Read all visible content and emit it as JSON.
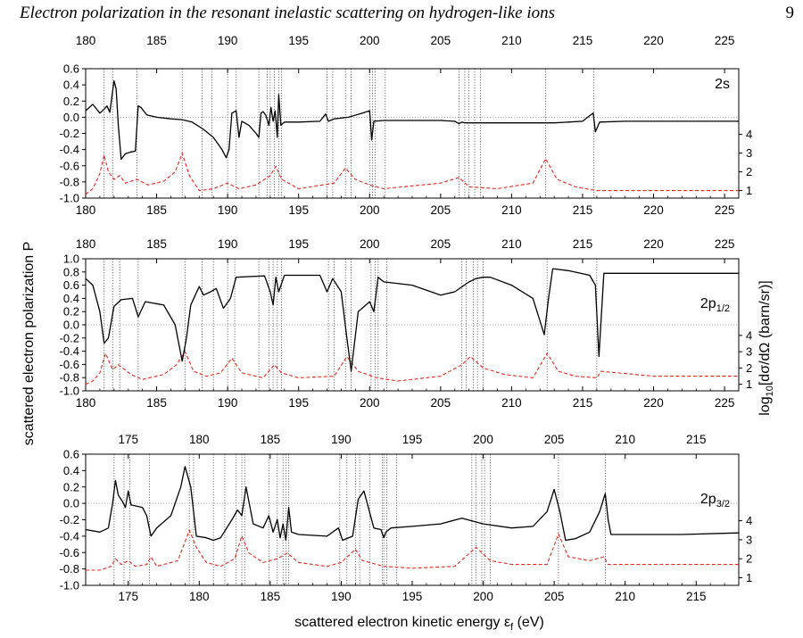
{
  "header": {
    "running_title": "Electron polarization in the resonant inelastic scattering on hydrogen-like ions",
    "page_number": "9"
  },
  "figure": {
    "ylabel_left": "scattered electron polarization P",
    "ylabel_right_parts": [
      "log",
      "10",
      "[dσ/dΩ (barn/sr)]"
    ],
    "xlabel_parts": [
      "scattered electron kinetic energy   ε",
      "f",
      " (eV)"
    ]
  },
  "chart_data": [
    {
      "type": "line",
      "panel_label": "2s",
      "panel_label_parts": [
        "2s",
        ""
      ],
      "xlim": [
        180,
        226
      ],
      "ylim": [
        -1.0,
        0.6
      ],
      "x_ticks": [
        180,
        185,
        190,
        195,
        200,
        205,
        210,
        215,
        220,
        225
      ],
      "y_ticks": [
        0.6,
        0.4,
        0.2,
        0.0,
        -0.2,
        -0.4,
        -0.6,
        -0.8,
        -1.0
      ],
      "y_tick_labels": [
        "0.6",
        "0.4",
        "0.2",
        "0.0",
        "-0.2",
        "-0.4",
        "-0.6",
        "-0.8",
        "-1.0"
      ],
      "right_ticks": [
        1,
        2,
        3,
        4
      ],
      "right_range": [
        0.6,
        7.5
      ],
      "resonance_lines": [
        181.3,
        181.9,
        183.6,
        186.8,
        188.2,
        188.9,
        190.0,
        190.6,
        192.2,
        192.8,
        193.0,
        193.3,
        193.6,
        193.8,
        197.0,
        197.4,
        198.3,
        198.7,
        200.0,
        200.2,
        200.4,
        201.1,
        206.3,
        206.7,
        207.0,
        207.4,
        207.8,
        212.4,
        215.8
      ],
      "polarization": {
        "x": [
          180.0,
          180.5,
          181.0,
          181.3,
          181.5,
          181.7,
          182.0,
          182.15,
          182.3,
          182.5,
          182.8,
          183.2,
          183.5,
          183.7,
          183.9,
          184.3,
          185.0,
          186.0,
          186.8,
          187.5,
          188.3,
          189.0,
          189.6,
          189.9,
          190.1,
          190.3,
          190.6,
          190.8,
          191.0,
          191.5,
          192.0,
          192.2,
          192.35,
          192.5,
          192.7,
          192.9,
          193.05,
          193.2,
          193.35,
          193.5,
          193.6,
          193.75,
          194.0,
          195.0,
          196.5,
          196.9,
          197.1,
          197.5,
          198.5,
          199.5,
          200.0,
          200.15,
          200.3,
          201.0,
          203.0,
          205.0,
          206.0,
          206.3,
          206.5,
          206.7,
          210.0,
          213.0,
          215.0,
          215.5,
          215.75,
          215.9,
          216.2,
          218.0,
          222.0,
          226.0
        ],
        "values": [
          0.08,
          0.16,
          0.05,
          0.1,
          0.14,
          0.06,
          0.45,
          0.35,
          -0.1,
          -0.52,
          -0.45,
          -0.43,
          -0.42,
          0.14,
          0.12,
          0.03,
          0.0,
          -0.02,
          -0.03,
          -0.06,
          -0.15,
          -0.25,
          -0.4,
          -0.5,
          -0.4,
          0.05,
          0.08,
          -0.25,
          -0.05,
          -0.1,
          -0.2,
          -0.25,
          0.05,
          0.07,
          0.02,
          -0.1,
          0.12,
          -0.05,
          0.08,
          -0.25,
          0.28,
          -0.1,
          -0.06,
          -0.06,
          -0.05,
          0.04,
          -0.05,
          -0.02,
          0.0,
          0.05,
          0.08,
          -0.28,
          -0.05,
          -0.04,
          -0.04,
          -0.04,
          -0.05,
          -0.08,
          -0.06,
          -0.07,
          -0.07,
          -0.07,
          -0.05,
          0.02,
          0.05,
          -0.18,
          -0.06,
          -0.05,
          -0.05,
          -0.05
        ]
      },
      "cross_section": {
        "x": [
          180.0,
          180.5,
          181.0,
          181.3,
          181.6,
          182.0,
          182.4,
          182.8,
          183.6,
          184.4,
          185.5,
          186.3,
          186.8,
          187.3,
          188.0,
          189.0,
          190.0,
          190.8,
          192.0,
          193.0,
          193.4,
          193.8,
          195.0,
          197.5,
          198.3,
          199.0,
          200.0,
          201.0,
          205.0,
          206.3,
          207.0,
          209.0,
          211.5,
          212.4,
          213.2,
          214.5,
          216.0,
          220.0,
          226.0
        ],
        "values": [
          0.8,
          1.1,
          1.9,
          2.9,
          2.0,
          1.6,
          1.8,
          1.4,
          1.6,
          1.3,
          1.5,
          2.0,
          3.0,
          1.8,
          1.0,
          1.1,
          1.4,
          1.1,
          1.3,
          1.8,
          2.3,
          1.6,
          1.1,
          1.4,
          2.2,
          1.6,
          1.3,
          1.1,
          1.4,
          1.7,
          1.2,
          1.1,
          1.4,
          2.7,
          1.6,
          1.2,
          1.0,
          1.0,
          1.0
        ]
      }
    },
    {
      "type": "line",
      "panel_label": "2p1/2",
      "panel_label_parts": [
        "2p",
        "1/2"
      ],
      "xlim": [
        180,
        226
      ],
      "ylim": [
        -1.0,
        1.0
      ],
      "x_ticks": [
        180,
        185,
        190,
        195,
        200,
        205,
        210,
        215,
        220,
        225
      ],
      "y_ticks": [
        1.0,
        0.8,
        0.6,
        0.4,
        0.2,
        0.0,
        -0.2,
        -0.4,
        -0.6,
        -0.8,
        -1.0
      ],
      "y_tick_labels": [
        "1.0",
        "0.8",
        "0.6",
        "0.4",
        "0.2",
        "0.0",
        "-0.2",
        "-0.4",
        "-0.6",
        "-0.8",
        "-1.0"
      ],
      "right_ticks": [
        1,
        2,
        3,
        4
      ],
      "right_range": [
        0.6,
        8.7
      ],
      "resonance_lines": [
        181.3,
        181.9,
        182.4,
        183.7,
        187.0,
        188.2,
        189.0,
        190.0,
        190.5,
        192.2,
        192.9,
        193.2,
        193.5,
        193.8,
        197.1,
        197.5,
        198.3,
        198.7,
        200.1,
        200.4,
        200.6,
        201.2,
        206.5,
        206.8,
        207.3,
        207.6,
        208.0,
        212.5,
        216.0
      ],
      "polarization": {
        "x": [
          180.0,
          180.5,
          181.0,
          181.3,
          181.6,
          182.0,
          182.5,
          183.3,
          183.7,
          184.2,
          185.5,
          186.3,
          186.8,
          187.1,
          187.4,
          188.0,
          188.3,
          188.8,
          189.2,
          189.7,
          190.2,
          190.6,
          191.5,
          192.6,
          193.0,
          193.2,
          193.4,
          193.6,
          194.0,
          196.5,
          197.0,
          197.4,
          198.0,
          198.4,
          198.7,
          199.2,
          200.0,
          200.3,
          200.6,
          201.0,
          203.0,
          205.0,
          206.0,
          207.0,
          207.5,
          208.0,
          208.5,
          210.0,
          211.5,
          212.3,
          212.6,
          212.9,
          214.0,
          215.5,
          215.9,
          216.15,
          216.5,
          218.0,
          222.0,
          226.0
        ],
        "values": [
          0.7,
          0.6,
          0.2,
          -0.28,
          -0.2,
          0.28,
          0.38,
          0.4,
          0.12,
          0.35,
          0.3,
          0.0,
          -0.55,
          -0.2,
          0.3,
          0.58,
          0.45,
          0.5,
          0.55,
          0.25,
          0.4,
          0.72,
          0.73,
          0.74,
          0.5,
          0.3,
          0.72,
          0.5,
          0.75,
          0.75,
          0.5,
          0.7,
          0.5,
          -0.2,
          -0.7,
          0.2,
          0.35,
          0.2,
          0.72,
          0.65,
          0.6,
          0.45,
          0.5,
          0.65,
          0.7,
          0.72,
          0.72,
          0.6,
          0.4,
          -0.15,
          0.4,
          0.85,
          0.82,
          0.75,
          0.6,
          -0.48,
          0.78,
          0.78,
          0.78,
          0.78
        ]
      },
      "cross_section": {
        "x": [
          180.0,
          180.5,
          181.0,
          181.4,
          181.9,
          182.3,
          182.6,
          183.2,
          184.0,
          185.5,
          186.4,
          187.0,
          187.6,
          188.5,
          189.5,
          190.3,
          191.0,
          192.5,
          193.3,
          193.8,
          195.0,
          197.5,
          198.4,
          199.2,
          200.5,
          202.0,
          205.0,
          206.5,
          207.1,
          208.0,
          209.5,
          211.5,
          212.5,
          213.3,
          214.5,
          216.0,
          216.3,
          220.0,
          226.0
        ],
        "values": [
          1.0,
          1.2,
          1.7,
          2.9,
          1.9,
          2.2,
          2.0,
          1.6,
          1.3,
          1.6,
          2.2,
          3.0,
          1.8,
          1.5,
          1.7,
          2.6,
          1.7,
          1.4,
          2.2,
          1.7,
          1.4,
          1.5,
          2.7,
          1.8,
          1.4,
          1.2,
          1.5,
          2.2,
          2.7,
          2.0,
          1.6,
          1.4,
          2.9,
          1.8,
          1.5,
          1.4,
          1.8,
          1.5,
          1.5
        ]
      }
    },
    {
      "type": "line",
      "panel_label": "2p3/2",
      "panel_label_parts": [
        "2p",
        "3/2"
      ],
      "xlim": [
        172,
        218
      ],
      "ylim": [
        -1.0,
        0.6
      ],
      "x_ticks": [
        175,
        180,
        185,
        190,
        195,
        200,
        205,
        210,
        215
      ],
      "y_ticks": [
        0.6,
        0.4,
        0.2,
        0.0,
        -0.2,
        -0.4,
        -0.6,
        -0.8,
        -1.0
      ],
      "y_tick_labels": [
        "0.6",
        "0.4",
        "0.2",
        "0.0",
        "-0.2",
        "-0.4",
        "-0.6",
        "-0.8",
        "-1.0"
      ],
      "right_ticks": [
        1,
        2,
        3,
        4
      ],
      "right_range": [
        0.6,
        7.5
      ],
      "resonance_lines": [
        174.0,
        174.7,
        175.1,
        176.5,
        179.3,
        179.6,
        181.0,
        181.8,
        182.6,
        183.0,
        183.2,
        184.9,
        185.5,
        185.9,
        186.1,
        186.3,
        189.9,
        190.4,
        191.0,
        191.3,
        192.0,
        192.9,
        193.0,
        193.2,
        193.9,
        199.2,
        199.5,
        199.9,
        200.1,
        200.5,
        205.3,
        208.6
      ],
      "polarization": {
        "x": [
          172.0,
          173.0,
          173.6,
          173.9,
          174.1,
          174.3,
          174.6,
          174.8,
          175.0,
          175.2,
          175.5,
          176.0,
          176.3,
          176.6,
          177.0,
          178.0,
          178.7,
          179.0,
          179.4,
          179.8,
          180.5,
          181.0,
          181.5,
          182.3,
          182.7,
          183.0,
          183.3,
          183.8,
          184.5,
          184.9,
          185.2,
          185.5,
          185.7,
          185.9,
          186.1,
          186.3,
          186.5,
          187.0,
          189.0,
          189.8,
          190.1,
          190.8,
          191.2,
          191.6,
          192.3,
          192.8,
          193.0,
          193.15,
          193.5,
          195.0,
          197.0,
          198.5,
          200.0,
          202.0,
          203.5,
          204.5,
          205.0,
          205.4,
          205.8,
          206.5,
          207.5,
          208.2,
          208.6,
          208.8,
          209.0,
          210.0,
          214.0,
          218.0
        ],
        "values": [
          -0.32,
          -0.35,
          -0.3,
          0.0,
          0.28,
          0.1,
          0.02,
          -0.05,
          0.15,
          -0.02,
          -0.03,
          -0.05,
          -0.15,
          -0.4,
          -0.3,
          -0.15,
          0.2,
          0.45,
          0.2,
          -0.4,
          -0.42,
          -0.45,
          -0.42,
          -0.2,
          -0.08,
          -0.15,
          0.2,
          -0.25,
          -0.3,
          -0.15,
          -0.35,
          -0.2,
          -0.42,
          -0.25,
          -0.45,
          -0.05,
          -0.35,
          -0.38,
          -0.4,
          -0.3,
          -0.45,
          -0.4,
          0.05,
          0.15,
          -0.3,
          -0.32,
          -0.42,
          -0.35,
          -0.3,
          -0.28,
          -0.25,
          -0.18,
          -0.25,
          -0.3,
          -0.28,
          -0.1,
          0.17,
          -0.1,
          -0.45,
          -0.43,
          -0.35,
          -0.1,
          0.12,
          -0.2,
          -0.38,
          -0.38,
          -0.38,
          -0.36
        ]
      },
      "cross_section": {
        "x": [
          172.0,
          173.0,
          173.8,
          174.1,
          174.5,
          175.0,
          175.5,
          176.3,
          176.6,
          177.0,
          178.5,
          179.3,
          179.8,
          180.5,
          181.5,
          182.5,
          183.0,
          183.5,
          184.5,
          185.5,
          186.2,
          187.0,
          189.0,
          190.0,
          191.0,
          191.5,
          193.0,
          195.0,
          198.0,
          199.5,
          200.5,
          202.0,
          204.5,
          205.3,
          206.0,
          207.5,
          208.5,
          208.8,
          212.0,
          218.0
        ],
        "values": [
          1.4,
          1.4,
          1.6,
          2.0,
          1.7,
          1.9,
          1.6,
          1.7,
          2.1,
          1.6,
          1.9,
          3.5,
          2.6,
          1.8,
          1.6,
          2.0,
          3.2,
          2.3,
          1.8,
          2.0,
          2.3,
          1.8,
          1.6,
          1.8,
          2.5,
          1.9,
          1.6,
          1.5,
          1.6,
          2.6,
          1.9,
          1.7,
          1.7,
          3.3,
          2.1,
          1.9,
          2.1,
          1.7,
          1.7,
          1.7
        ]
      }
    }
  ]
}
